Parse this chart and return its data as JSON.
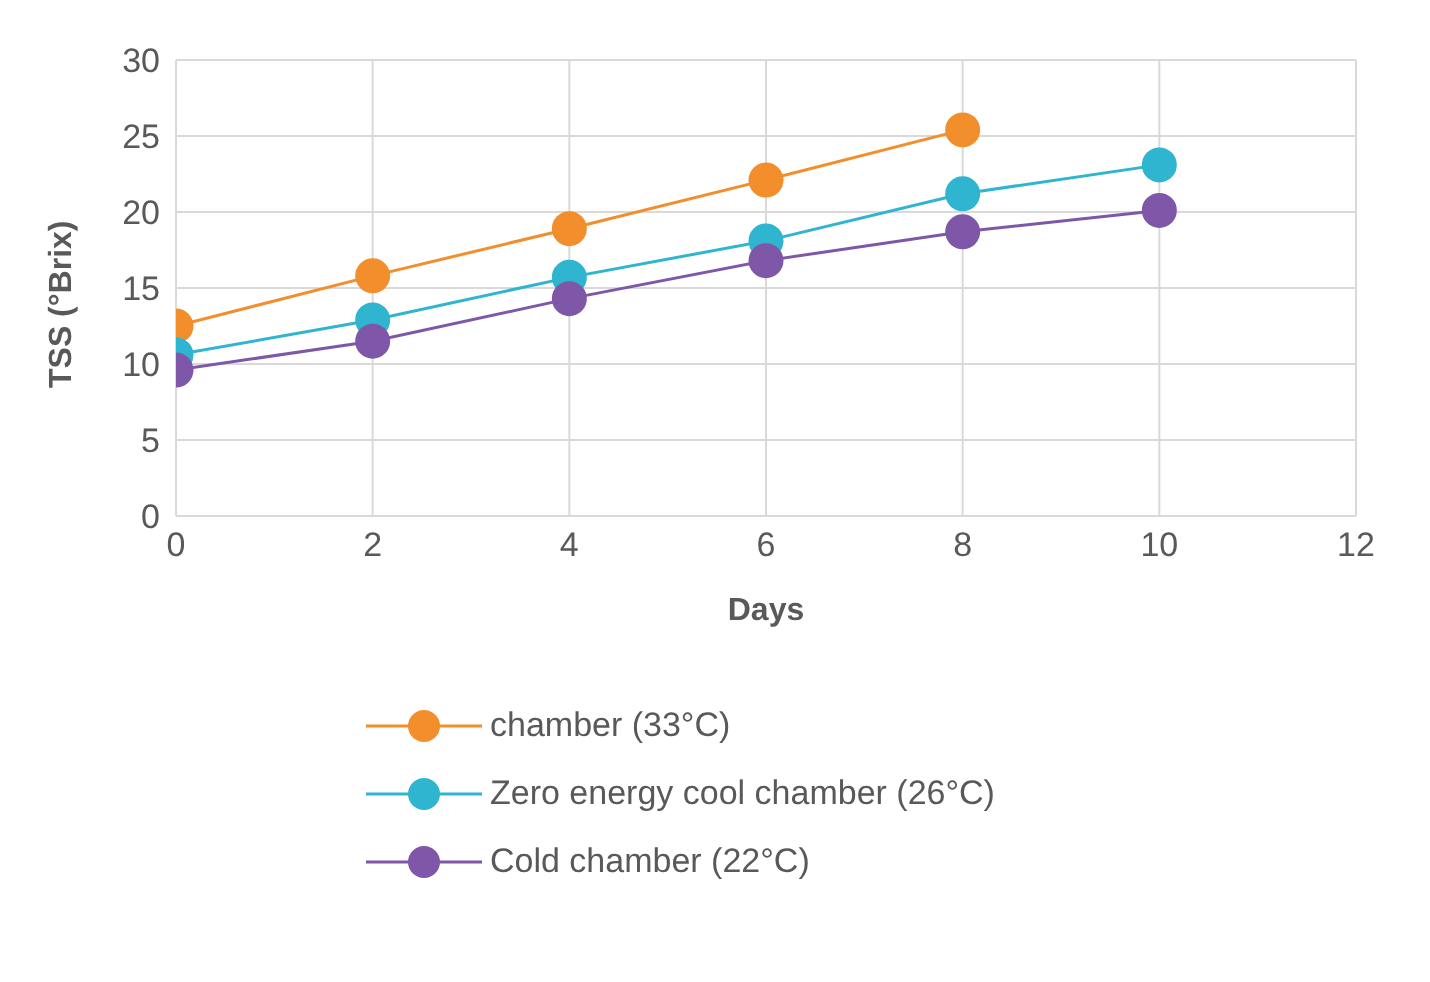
{
  "chart_data": {
    "type": "line",
    "xlabel": "Days",
    "ylabel": "TSS (°Brix)",
    "x": [
      0,
      2,
      4,
      6,
      8,
      10
    ],
    "series": [
      {
        "name": "chamber (33°C)",
        "color": "#f28e2b",
        "values": [
          12.5,
          15.8,
          18.9,
          22.1,
          25.4,
          null
        ]
      },
      {
        "name": "Zero energy cool chamber (26°C)",
        "color": "#2fb5d0",
        "values": [
          10.6,
          12.9,
          15.7,
          18.1,
          21.2,
          23.1
        ]
      },
      {
        "name": "Cold chamber (22°C)",
        "color": "#7e57a8",
        "values": [
          9.6,
          11.5,
          14.3,
          16.8,
          18.7,
          20.1
        ]
      }
    ],
    "xlim": [
      0,
      12
    ],
    "xticks": [
      0,
      2,
      4,
      6,
      8,
      10,
      12
    ],
    "ylim": [
      0,
      30
    ],
    "yticks": [
      0,
      5,
      10,
      15,
      20,
      25,
      30
    ],
    "grid": true,
    "legend": "bottom",
    "marker": "circle",
    "line_style": "solid"
  }
}
